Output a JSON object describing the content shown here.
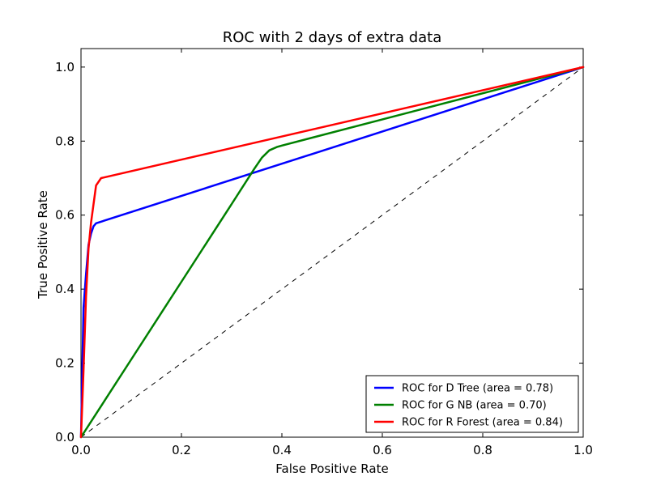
{
  "chart_data": {
    "type": "line",
    "title": "ROC with 2 days of extra data",
    "xlabel": "False Positive Rate",
    "ylabel": "True Positive Rate",
    "xlim": [
      0.0,
      1.0
    ],
    "ylim": [
      0.0,
      1.05
    ],
    "xticks": [
      0.0,
      0.2,
      0.4,
      0.6,
      0.8,
      1.0
    ],
    "xtick_labels": [
      "0.0",
      "0.2",
      "0.4",
      "0.6",
      "0.8",
      "1.0"
    ],
    "yticks": [
      0.0,
      0.2,
      0.4,
      0.6,
      0.8,
      1.0
    ],
    "ytick_labels": [
      "0.0",
      "0.2",
      "0.4",
      "0.6",
      "0.8",
      "1.0"
    ],
    "grid": false,
    "legend_position": "lower-right",
    "series": [
      {
        "name": "ROC for D Tree (area = 0.78)",
        "color": "#0000ff",
        "x": [
          0.0,
          0.005,
          0.01,
          0.015,
          0.02,
          0.025,
          0.03,
          1.0
        ],
        "y": [
          0.0,
          0.35,
          0.44,
          0.52,
          0.55,
          0.57,
          0.578,
          1.0
        ]
      },
      {
        "name": "ROC for G NB (area = 0.70)",
        "color": "#008000",
        "x": [
          0.0,
          0.1,
          0.2,
          0.3,
          0.345,
          0.36,
          0.375,
          0.39,
          0.4,
          1.0
        ],
        "y": [
          0.0,
          0.21,
          0.42,
          0.63,
          0.725,
          0.755,
          0.775,
          0.784,
          0.788,
          1.0
        ]
      },
      {
        "name": "ROC for R Forest (area = 0.84)",
        "color": "#ff0000",
        "x": [
          0.0,
          0.005,
          0.01,
          0.015,
          0.02,
          0.03,
          0.04,
          1.0
        ],
        "y": [
          0.0,
          0.18,
          0.38,
          0.51,
          0.58,
          0.68,
          0.7,
          1.0
        ]
      }
    ],
    "diagonal": {
      "x": [
        0.0,
        1.0
      ],
      "y": [
        0.0,
        1.0
      ],
      "color": "#000000",
      "style": "dashed"
    }
  }
}
